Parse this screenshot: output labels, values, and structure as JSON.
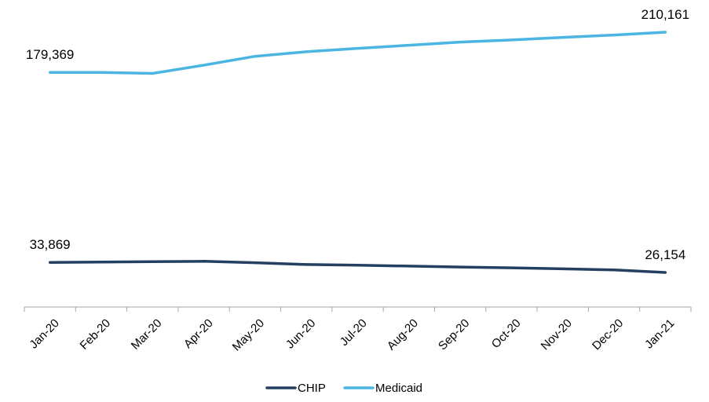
{
  "chart_data": {
    "type": "line",
    "title": "",
    "xlabel": "",
    "ylabel": "",
    "categories": [
      "Jan-20",
      "Feb-20",
      "Mar-20",
      "Apr-20",
      "May-20",
      "Jun-20",
      "Jul-20",
      "Aug-20",
      "Sep-20",
      "Oct-20",
      "Nov-20",
      "Dec-20",
      "Jan-21"
    ],
    "series": [
      {
        "name": "CHIP",
        "color": "#243F60",
        "values": [
          33869,
          34100,
          34400,
          34700,
          33600,
          32200,
          31700,
          31000,
          30300,
          29700,
          28900,
          28100,
          26154
        ]
      },
      {
        "name": "Medicaid",
        "color": "#4BB6E1",
        "values": [
          179369,
          179369,
          178600,
          184900,
          191700,
          195200,
          197800,
          200200,
          202600,
          204200,
          206200,
          208000,
          210161
        ]
      }
    ],
    "data_labels": [
      {
        "series": 1,
        "index": 0,
        "text": "179,369"
      },
      {
        "series": 1,
        "index": 12,
        "text": "210,161"
      },
      {
        "series": 0,
        "index": 0,
        "text": "33,869"
      },
      {
        "series": 0,
        "index": 12,
        "text": "26,154"
      }
    ],
    "y_axis_visible": false,
    "gridlines": false,
    "legend_position": "bottom"
  }
}
